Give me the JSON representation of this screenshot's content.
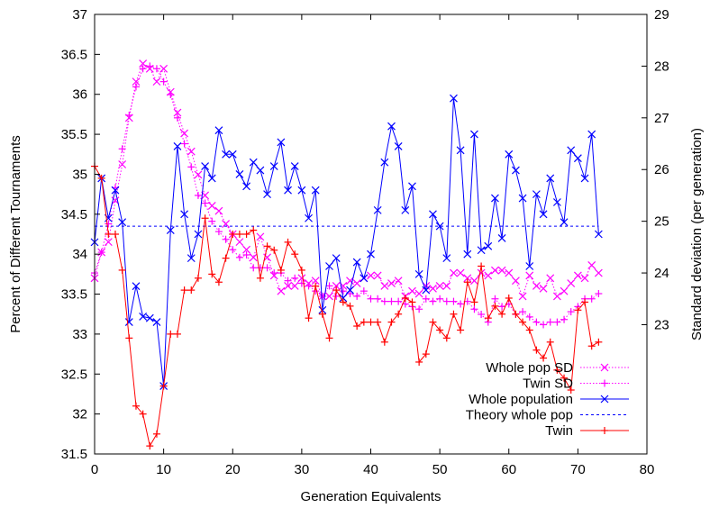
{
  "chart_data": {
    "type": "line",
    "xlabel": "Generation Equivalents",
    "ylabel": "Percent of Different Tournaments",
    "y2label": "Standard deviation (per generation)",
    "xlim": [
      0,
      80
    ],
    "ylim": [
      31.5,
      37
    ],
    "y2lim": [
      20.5,
      29
    ],
    "x_ticks": [
      "0",
      "10",
      "20",
      "30",
      "40",
      "50",
      "60",
      "70",
      "80"
    ],
    "y_ticks": [
      "31.5",
      "32",
      "32.5",
      "33",
      "33.5",
      "34",
      "34.5",
      "35",
      "35.5",
      "36",
      "36.5",
      "37"
    ],
    "y2_ticks": [
      "23",
      "24",
      "25",
      "26",
      "27",
      "28",
      "29"
    ],
    "legend_position": "bottom-right",
    "series": [
      {
        "name": "Whole pop SD",
        "axis": "y2",
        "style": "dotted",
        "marker": "x",
        "color": "#ff00ff",
        "x": [
          0,
          1,
          2,
          3,
          4,
          5,
          6,
          7,
          8,
          9,
          10,
          11,
          12,
          13,
          14,
          15,
          16,
          17,
          18,
          19,
          20,
          21,
          22,
          23,
          24,
          25,
          26,
          27,
          28,
          29,
          30,
          31,
          32,
          33,
          34,
          35,
          36,
          37,
          38,
          39,
          40,
          41,
          42,
          43,
          44,
          45,
          46,
          47,
          48,
          49,
          50,
          51,
          52,
          53,
          54,
          55,
          56,
          57,
          58,
          59,
          60,
          61,
          62,
          63,
          64,
          65,
          66,
          67,
          68,
          69,
          70,
          71,
          72,
          73
        ],
        "values": [
          23.9,
          24.4,
          24.6,
          25.4,
          26.1,
          27.0,
          27.7,
          28.05,
          27.95,
          27.7,
          27.95,
          27.5,
          27.1,
          26.7,
          26.35,
          25.9,
          25.5,
          25.3,
          25.2,
          24.95,
          24.75,
          24.6,
          24.45,
          24.3,
          24.7,
          24.3,
          23.95,
          23.65,
          23.75,
          23.75,
          23.9,
          23.8,
          23.85,
          23.55,
          23.55,
          23.75,
          23.75,
          23.85,
          23.8,
          23.9,
          23.95,
          23.95,
          23.75,
          23.8,
          23.85,
          23.55,
          23.65,
          23.6,
          23.75,
          23.7,
          23.75,
          23.75,
          24.0,
          24.0,
          23.9,
          23.85,
          24.0,
          23.95,
          24.05,
          24.05,
          24.0,
          23.85,
          23.55,
          23.95,
          23.75,
          23.7,
          23.9,
          23.55,
          23.65,
          23.8,
          23.95,
          23.9,
          24.15,
          24.0
        ]
      },
      {
        "name": "Twin SD",
        "axis": "y2",
        "style": "dotted",
        "marker": "+",
        "color": "#ff00ff",
        "x": [
          0,
          1,
          2,
          3,
          4,
          5,
          6,
          7,
          8,
          9,
          10,
          11,
          12,
          13,
          14,
          15,
          16,
          17,
          18,
          19,
          20,
          21,
          22,
          23,
          24,
          25,
          26,
          27,
          28,
          29,
          30,
          31,
          32,
          33,
          34,
          35,
          36,
          37,
          38,
          39,
          40,
          41,
          42,
          43,
          44,
          45,
          46,
          47,
          48,
          49,
          50,
          51,
          52,
          53,
          54,
          55,
          56,
          57,
          58,
          59,
          60,
          61,
          62,
          63,
          64,
          65,
          66,
          67,
          68,
          69,
          70,
          71,
          72,
          73
        ],
        "values": [
          24.0,
          24.4,
          24.95,
          25.65,
          26.4,
          27.05,
          27.6,
          27.95,
          28.0,
          27.95,
          27.7,
          27.45,
          27.0,
          26.5,
          26.05,
          25.5,
          25.35,
          25.0,
          24.8,
          24.65,
          24.45,
          24.3,
          24.35,
          24.1,
          24.1,
          24.1,
          24.0,
          24.0,
          23.85,
          23.9,
          23.8,
          23.75,
          23.65,
          23.55,
          23.75,
          23.55,
          23.65,
          23.6,
          23.55,
          23.65,
          23.5,
          23.5,
          23.45,
          23.45,
          23.45,
          23.4,
          23.35,
          23.3,
          23.5,
          23.45,
          23.5,
          23.45,
          23.45,
          23.4,
          23.45,
          23.3,
          23.2,
          23.05,
          23.5,
          23.35,
          23.4,
          23.2,
          23.25,
          23.15,
          23.05,
          23.0,
          23.05,
          23.05,
          23.1,
          23.25,
          23.35,
          23.5,
          23.5,
          23.6
        ]
      },
      {
        "name": "Whole population",
        "axis": "y",
        "style": "solid",
        "marker": "x",
        "color": "#0000ff",
        "x": [
          0,
          1,
          2,
          3,
          4,
          5,
          6,
          7,
          8,
          9,
          10,
          11,
          12,
          13,
          14,
          15,
          16,
          17,
          18,
          19,
          20,
          21,
          22,
          23,
          24,
          25,
          26,
          27,
          28,
          29,
          30,
          31,
          32,
          33,
          34,
          35,
          36,
          37,
          38,
          39,
          40,
          41,
          42,
          43,
          44,
          45,
          46,
          47,
          48,
          49,
          50,
          51,
          52,
          53,
          54,
          55,
          56,
          57,
          58,
          59,
          60,
          61,
          62,
          63,
          64,
          65,
          66,
          67,
          68,
          69,
          70,
          71,
          72,
          73
        ],
        "values": [
          34.15,
          34.95,
          34.45,
          34.8,
          34.4,
          33.15,
          33.6,
          33.22,
          33.2,
          33.15,
          32.35,
          34.3,
          35.35,
          34.5,
          33.95,
          34.25,
          35.1,
          34.95,
          35.55,
          35.25,
          35.25,
          35.0,
          34.85,
          35.15,
          35.05,
          34.75,
          35.1,
          35.4,
          34.8,
          35.1,
          34.8,
          34.45,
          34.8,
          33.3,
          33.85,
          33.95,
          33.45,
          33.55,
          33.9,
          33.7,
          34.0,
          34.55,
          35.15,
          35.6,
          35.35,
          34.55,
          34.85,
          33.75,
          33.55,
          34.5,
          34.35,
          33.95,
          35.95,
          35.3,
          34.0,
          35.5,
          34.05,
          34.1,
          34.7,
          34.2,
          35.25,
          35.05,
          34.7,
          33.85,
          34.75,
          34.5,
          34.95,
          34.65,
          34.4,
          35.3,
          35.2,
          34.95,
          35.5,
          34.25
        ]
      },
      {
        "name": "Theory whole pop",
        "axis": "y",
        "style": "dashed",
        "marker": "none",
        "color": "#0000ff",
        "x": [
          0,
          73
        ],
        "values": [
          34.35,
          34.35
        ]
      },
      {
        "name": "Twin",
        "axis": "y",
        "style": "solid",
        "marker": "+",
        "color": "#ff0000",
        "x": [
          0,
          1,
          2,
          3,
          4,
          5,
          6,
          7,
          8,
          9,
          10,
          11,
          12,
          13,
          14,
          15,
          16,
          17,
          18,
          19,
          20,
          21,
          22,
          23,
          24,
          25,
          26,
          27,
          28,
          29,
          30,
          31,
          32,
          33,
          34,
          35,
          36,
          37,
          38,
          39,
          40,
          41,
          42,
          43,
          44,
          45,
          46,
          47,
          48,
          49,
          50,
          51,
          52,
          53,
          54,
          55,
          56,
          57,
          58,
          59,
          60,
          61,
          62,
          63,
          64,
          65,
          66,
          67,
          68,
          69,
          70,
          71,
          72,
          73
        ],
        "values": [
          35.1,
          34.95,
          34.25,
          34.25,
          33.8,
          32.95,
          32.1,
          32.0,
          31.6,
          31.75,
          32.35,
          33.0,
          33.0,
          33.55,
          33.55,
          33.7,
          34.45,
          33.75,
          33.65,
          33.95,
          34.25,
          34.25,
          34.25,
          34.3,
          33.7,
          34.1,
          34.05,
          33.8,
          34.15,
          34.0,
          33.8,
          33.2,
          33.6,
          33.25,
          32.95,
          33.55,
          33.4,
          33.35,
          33.1,
          33.15,
          33.15,
          33.15,
          32.9,
          33.15,
          33.25,
          33.45,
          33.4,
          32.65,
          32.75,
          33.15,
          33.05,
          32.95,
          33.25,
          33.05,
          33.65,
          33.4,
          33.85,
          33.2,
          33.35,
          33.25,
          33.45,
          33.25,
          33.15,
          33.05,
          32.8,
          32.7,
          32.9,
          32.55,
          32.45,
          32.3,
          33.3,
          33.4,
          32.85,
          32.9
        ]
      }
    ]
  }
}
